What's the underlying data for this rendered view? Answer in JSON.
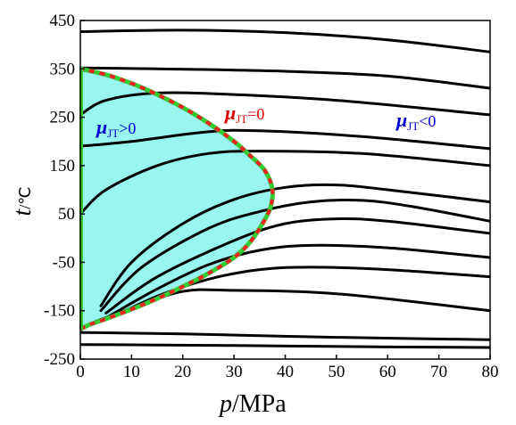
{
  "chart_data": {
    "type": "line",
    "xlabel": {
      "symbol": "p",
      "unit": "/MPa"
    },
    "ylabel": {
      "symbol": "t",
      "unit": "/℃"
    },
    "xlim": [
      0,
      80
    ],
    "ylim": [
      -250,
      450
    ],
    "xticks": [
      "0",
      "10",
      "20",
      "30",
      "40",
      "50",
      "60",
      "70",
      "80"
    ],
    "yticks": [
      "450",
      "350",
      "250",
      "150",
      "50",
      "-50",
      "-150",
      "-250"
    ],
    "grid": false,
    "region_labels": [
      {
        "id": "positive",
        "mu": "μ",
        "sub": "JT",
        "rel": ">0",
        "color": "#0000cc"
      },
      {
        "id": "zero",
        "mu": "μ",
        "sub": "JT",
        "rel": "=0",
        "color": "#dd0000"
      },
      {
        "id": "negative",
        "mu": "μ",
        "sub": "JT",
        "rel": "<0",
        "color": "#0000cc"
      }
    ],
    "colors": {
      "isenthalp": "#000000",
      "inversion_curve_outer": "#33cc33",
      "inversion_curve_inner": "#ee2222",
      "positive_region_fill": "#99f5f0"
    },
    "inversion_curve": [
      [
        0,
        -188
      ],
      [
        2,
        -178
      ],
      [
        5,
        -167
      ],
      [
        10,
        -147
      ],
      [
        15,
        -125
      ],
      [
        20,
        -100
      ],
      [
        25,
        -73
      ],
      [
        30,
        -40
      ],
      [
        33,
        -10
      ],
      [
        35,
        20
      ],
      [
        37,
        60
      ],
      [
        37.5,
        100
      ],
      [
        36,
        140
      ],
      [
        33,
        172
      ],
      [
        30,
        200
      ],
      [
        25,
        238
      ],
      [
        20,
        270
      ],
      [
        15,
        297
      ],
      [
        10,
        320
      ],
      [
        5,
        338
      ],
      [
        0,
        350
      ]
    ],
    "series": [
      {
        "values": [
          [
            0,
            427
          ],
          [
            20,
            430
          ],
          [
            40,
            425
          ],
          [
            60,
            410
          ],
          [
            80,
            385
          ]
        ]
      },
      {
        "values": [
          [
            0,
            352
          ],
          [
            15,
            350
          ],
          [
            40,
            345
          ],
          [
            60,
            335
          ],
          [
            80,
            310
          ]
        ]
      },
      {
        "values": [
          [
            0,
            255
          ],
          [
            5,
            285
          ],
          [
            15,
            300
          ],
          [
            30,
            297
          ],
          [
            50,
            285
          ],
          [
            80,
            255
          ]
        ]
      },
      {
        "values": [
          [
            0,
            190
          ],
          [
            10,
            200
          ],
          [
            25,
            220
          ],
          [
            35,
            222
          ],
          [
            55,
            210
          ],
          [
            80,
            185
          ]
        ]
      },
      {
        "values": [
          [
            0,
            50
          ],
          [
            5,
            100
          ],
          [
            15,
            150
          ],
          [
            25,
            175
          ],
          [
            35,
            180
          ],
          [
            55,
            175
          ],
          [
            80,
            150
          ]
        ]
      },
      {
        "values": [
          [
            4,
            -140
          ],
          [
            10,
            -50
          ],
          [
            20,
            30
          ],
          [
            30,
            80
          ],
          [
            40,
            105
          ],
          [
            50,
            110
          ],
          [
            60,
            100
          ],
          [
            80,
            75
          ]
        ]
      },
      {
        "values": [
          [
            4,
            -150
          ],
          [
            12,
            -60
          ],
          [
            25,
            20
          ],
          [
            35,
            55
          ],
          [
            45,
            75
          ],
          [
            55,
            78
          ],
          [
            65,
            65
          ],
          [
            80,
            35
          ]
        ]
      },
      {
        "values": [
          [
            5,
            -155
          ],
          [
            15,
            -80
          ],
          [
            30,
            -5
          ],
          [
            40,
            30
          ],
          [
            50,
            40
          ],
          [
            60,
            35
          ],
          [
            80,
            10
          ]
        ]
      },
      {
        "values": [
          [
            5,
            -165
          ],
          [
            15,
            -105
          ],
          [
            25,
            -55
          ],
          [
            35,
            -25
          ],
          [
            45,
            -15
          ],
          [
            60,
            -20
          ],
          [
            80,
            -40
          ]
        ]
      },
      {
        "values": [
          [
            6,
            -165
          ],
          [
            15,
            -120
          ],
          [
            25,
            -85
          ],
          [
            35,
            -65
          ],
          [
            45,
            -60
          ],
          [
            60,
            -65
          ],
          [
            80,
            -80
          ]
        ]
      },
      {
        "values": [
          [
            3,
            -172
          ],
          [
            10,
            -145
          ],
          [
            20,
            -110
          ],
          [
            30,
            -108
          ],
          [
            50,
            -115
          ],
          [
            80,
            -150
          ]
        ]
      },
      {
        "values": [
          [
            0,
            -195
          ],
          [
            20,
            -198
          ],
          [
            50,
            -205
          ],
          [
            80,
            -210
          ]
        ]
      },
      {
        "values": [
          [
            0,
            -220
          ],
          [
            30,
            -222
          ],
          [
            60,
            -225
          ],
          [
            80,
            -226
          ]
        ]
      }
    ]
  }
}
